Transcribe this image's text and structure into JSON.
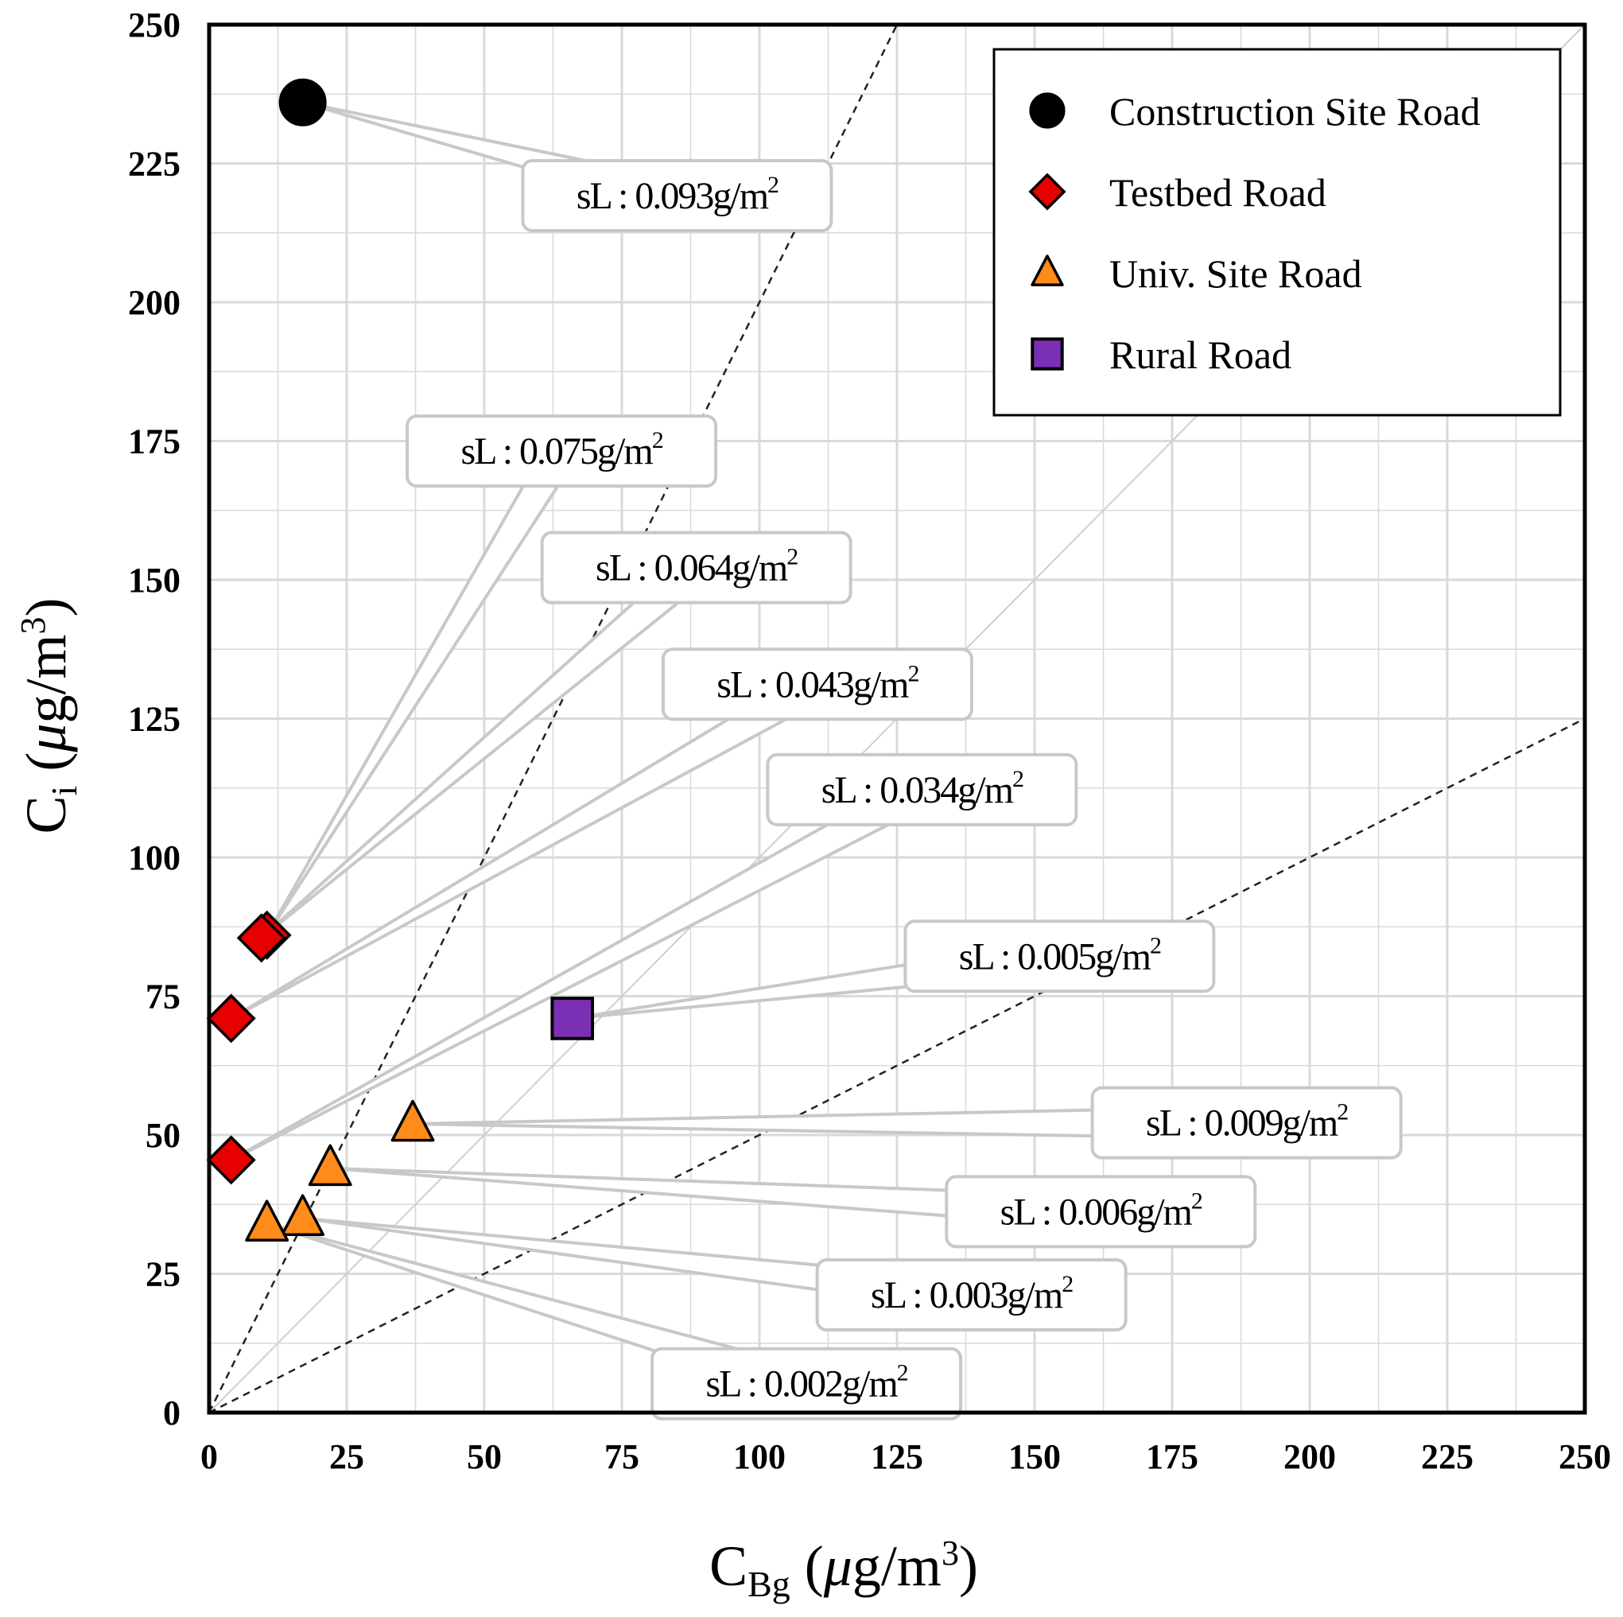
{
  "chart_data": {
    "type": "scatter",
    "title": "",
    "xlabel": {
      "main": "C",
      "sub": "Bg",
      "unit_open": " (",
      "mu": "μ",
      "unit_mid": "g/m",
      "sup": "3",
      "unit_close": ")"
    },
    "ylabel": {
      "main": "C",
      "sub": "i",
      "unit_open": " (",
      "mu": "μ",
      "unit_mid": "g/m",
      "sup": "3",
      "unit_close": ")"
    },
    "xlim": [
      0,
      250
    ],
    "ylim": [
      0,
      250
    ],
    "xticks": [
      "0",
      "25",
      "50",
      "75",
      "100",
      "125",
      "150",
      "175",
      "200",
      "225",
      "250"
    ],
    "yticks": [
      "0",
      "25",
      "50",
      "75",
      "100",
      "125",
      "150",
      "175",
      "200",
      "225",
      "250"
    ],
    "grid": true,
    "legend_position": "top-right",
    "reference_lines": [
      {
        "name": "y = 2x",
        "slope": 2,
        "style": "dashed"
      },
      {
        "name": "y = x",
        "slope": 1,
        "style": "solid-light"
      },
      {
        "name": "y = 0.5x",
        "slope": 0.5,
        "style": "dashed"
      }
    ],
    "series": [
      {
        "name": "Construction Site Road",
        "marker": "circle",
        "color": "#000000",
        "points": [
          {
            "x": 17,
            "y": 236,
            "label": "0.093"
          }
        ]
      },
      {
        "name": "Testbed Road",
        "marker": "diamond",
        "color": "#e60000",
        "points": [
          {
            "x": 10.5,
            "y": 86,
            "label": "0.075"
          },
          {
            "x": 9.5,
            "y": 85.5,
            "label": "0.064"
          },
          {
            "x": 4,
            "y": 71,
            "label": "0.043"
          },
          {
            "x": 4,
            "y": 45.5,
            "label": "0.034"
          }
        ]
      },
      {
        "name": "Univ. Site Road",
        "marker": "triangle",
        "color": "#ff8c1a",
        "points": [
          {
            "x": 37,
            "y": 52,
            "label": "0.009"
          },
          {
            "x": 22,
            "y": 44,
            "label": "0.006"
          },
          {
            "x": 17,
            "y": 35,
            "label": "0.003"
          },
          {
            "x": 10.5,
            "y": 34,
            "label": "0.002"
          }
        ]
      },
      {
        "name": "Rural Road",
        "marker": "square",
        "color": "#7b2fb5",
        "points": [
          {
            "x": 66,
            "y": 71,
            "label": "0.005"
          }
        ]
      }
    ],
    "callout_prefix": "sL : ",
    "callout_unit": "g/m",
    "callout_unit_sup": "2",
    "callouts": [
      {
        "series": 0,
        "point": 0,
        "box_x": 57,
        "box_y": 225.5
      },
      {
        "series": 1,
        "point": 0,
        "box_x": 36,
        "box_y": 179.5
      },
      {
        "series": 1,
        "point": 1,
        "box_x": 60.5,
        "box_y": 158.5
      },
      {
        "series": 1,
        "point": 2,
        "box_x": 82.5,
        "box_y": 137.5
      },
      {
        "series": 1,
        "point": 3,
        "box_x": 101.5,
        "box_y": 118.5
      },
      {
        "series": 3,
        "point": 0,
        "box_x": 126.5,
        "box_y": 88.5
      },
      {
        "series": 2,
        "point": 0,
        "box_x": 160.5,
        "box_y": 58.5
      },
      {
        "series": 2,
        "point": 1,
        "box_x": 134,
        "box_y": 42.5
      },
      {
        "series": 2,
        "point": 2,
        "box_x": 110.5,
        "box_y": 27.5
      },
      {
        "series": 2,
        "point": 3,
        "box_x": 80.5,
        "box_y": 11.5
      }
    ]
  },
  "colors": {
    "grid": "#d9d9d9",
    "identity_line": "#cfcfcf",
    "callout_border": "#c8c8c8"
  }
}
